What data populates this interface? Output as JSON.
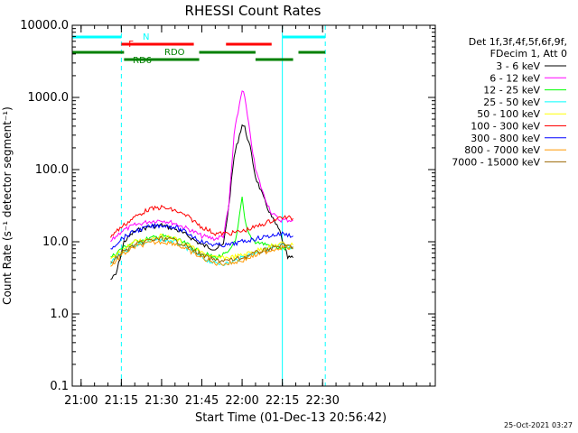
{
  "chart_data": {
    "type": "line",
    "title": "RHESSI Count Rates",
    "xlabel": "Start Time (01-Dec-13 20:56:42)",
    "ylabel": "Count Rate (s⁻¹ detector segment⁻¹)",
    "y_scale": "log",
    "ylim": [
      0.1,
      10000
    ],
    "xlim": [
      "20:56:42",
      "23:12:00"
    ],
    "x_ticks": [
      "21:00",
      "21:15",
      "21:30",
      "21:45",
      "22:00",
      "22:15",
      "22:30"
    ],
    "y_ticks": [
      "0.1",
      "1.0",
      "10.0",
      "100.0",
      "1000.0",
      "10000.0"
    ],
    "timestamp": "25-Oct-2021 03:27",
    "legend": {
      "position": "right",
      "header": [
        "Det 1f,3f,4f,5f,6f,9f,",
        "FDecim 1, Att 0"
      ]
    },
    "series": [
      {
        "name": "3 - 6 keV",
        "color": "#000000",
        "x": [
          "21:11",
          "21:13",
          "21:16",
          "21:20",
          "21:25",
          "21:30",
          "21:35",
          "21:40",
          "21:45",
          "21:50",
          "21:53",
          "21:55",
          "21:57",
          "21:59",
          "22:00",
          "22:01",
          "22:03",
          "22:05",
          "22:08",
          "22:11",
          "22:14",
          "22:16",
          "22:17",
          "22:19"
        ],
        "y": [
          3,
          3.5,
          10,
          14,
          16,
          17,
          15,
          12,
          9,
          8,
          9,
          30,
          150,
          300,
          420,
          380,
          200,
          80,
          40,
          22,
          14,
          8,
          6,
          6
        ]
      },
      {
        "name": "6 - 12 keV",
        "color": "#ff00ff",
        "x": [
          "21:11",
          "21:15",
          "21:20",
          "21:25",
          "21:30",
          "21:35",
          "21:40",
          "21:45",
          "21:50",
          "21:53",
          "21:55",
          "21:57",
          "21:59",
          "22:00",
          "22:01",
          "22:03",
          "22:05",
          "22:08",
          "22:11",
          "22:14",
          "22:19"
        ],
        "y": [
          10,
          14,
          17,
          19,
          20,
          18,
          15,
          12,
          11,
          12,
          30,
          300,
          800,
          1300,
          1000,
          300,
          100,
          45,
          25,
          20,
          20
        ]
      },
      {
        "name": "12 - 25 keV",
        "color": "#00ff00",
        "x": [
          "21:11",
          "21:15",
          "21:20",
          "21:25",
          "21:30",
          "21:35",
          "21:40",
          "21:45",
          "21:50",
          "21:55",
          "21:58",
          "22:00",
          "22:01",
          "22:02",
          "22:03",
          "22:05",
          "22:10",
          "22:15",
          "22:19"
        ],
        "y": [
          6,
          8,
          10,
          11,
          12,
          11,
          9,
          7,
          6,
          7,
          12,
          40,
          20,
          14,
          12,
          10,
          9,
          8,
          8
        ]
      },
      {
        "name": "25 - 50 keV",
        "color": "#00ffff",
        "x": [
          "21:11",
          "21:15",
          "21:20",
          "21:25",
          "21:30",
          "21:35",
          "21:40",
          "21:45",
          "21:50",
          "21:55",
          "22:00",
          "22:05",
          "22:10",
          "22:15",
          "22:19"
        ],
        "y": [
          5,
          7,
          9,
          10,
          11,
          10,
          8,
          6,
          5,
          5,
          6,
          7,
          8,
          9,
          8
        ]
      },
      {
        "name": "50 - 100 keV",
        "color": "#ffff00",
        "x": [
          "21:11",
          "21:15",
          "21:20",
          "21:25",
          "21:30",
          "21:35",
          "21:40",
          "21:45",
          "21:50",
          "21:55",
          "22:00",
          "22:05",
          "22:10",
          "22:15",
          "22:19"
        ],
        "y": [
          5.5,
          7.5,
          10,
          11,
          12,
          11,
          9,
          7,
          6,
          6,
          6.5,
          7.5,
          8.5,
          9.5,
          9
        ]
      },
      {
        "name": "100 - 300 keV",
        "color": "#ff0000",
        "x": [
          "21:11",
          "21:15",
          "21:20",
          "21:25",
          "21:30",
          "21:35",
          "21:40",
          "21:45",
          "21:50",
          "21:55",
          "22:00",
          "22:05",
          "22:10",
          "22:15",
          "22:19"
        ],
        "y": [
          12,
          16,
          22,
          28,
          30,
          27,
          22,
          16,
          13,
          13,
          14,
          16,
          19,
          22,
          21
        ]
      },
      {
        "name": "300 - 800 keV",
        "color": "#0000ff",
        "x": [
          "21:11",
          "21:15",
          "21:20",
          "21:25",
          "21:30",
          "21:35",
          "21:40",
          "21:45",
          "21:50",
          "21:55",
          "22:00",
          "22:05",
          "22:10",
          "22:15",
          "22:19"
        ],
        "y": [
          8,
          11,
          14,
          16,
          17,
          16,
          13,
          10,
          9,
          9,
          10,
          11,
          12,
          13,
          12
        ]
      },
      {
        "name": "800 - 7000 keV",
        "color": "#ff9900",
        "x": [
          "21:11",
          "21:15",
          "21:20",
          "21:25",
          "21:30",
          "21:35",
          "21:40",
          "21:45",
          "21:50",
          "21:55",
          "22:00",
          "22:05",
          "22:10",
          "22:15",
          "22:19"
        ],
        "y": [
          4.5,
          6.5,
          8.5,
          9.5,
          10,
          9.5,
          7.5,
          6,
          5,
          5,
          5.5,
          6.5,
          7.5,
          8.5,
          8
        ]
      },
      {
        "name": "7000 - 15000 keV",
        "color": "#996600",
        "x": [
          "21:11",
          "21:15",
          "21:20",
          "21:25",
          "21:30",
          "21:35",
          "21:40",
          "21:45",
          "21:50",
          "21:55",
          "22:00",
          "22:05",
          "22:10",
          "22:15",
          "22:19"
        ],
        "y": [
          5,
          7,
          9,
          10.5,
          11,
          10.5,
          8.5,
          6.5,
          5.5,
          5.5,
          6,
          7,
          8,
          9,
          8.5
        ]
      }
    ],
    "flag_bars": [
      {
        "label": "N",
        "color": "#00ffff",
        "segments": [
          [
            "20:56:42",
            "21:15"
          ],
          [
            "22:15",
            "22:31"
          ]
        ]
      },
      {
        "label": "F",
        "color": "#ff0000",
        "segments": [
          [
            "21:15",
            "21:42"
          ],
          [
            "21:54",
            "22:11"
          ]
        ]
      },
      {
        "label": "RDO",
        "color": "#008000",
        "segments": [
          [
            "20:56:42",
            "21:16"
          ],
          [
            "21:44",
            "22:05"
          ],
          [
            "22:21",
            "22:31"
          ]
        ]
      },
      {
        "label": "RD6",
        "color": "#008000",
        "segments": [
          [
            "21:16",
            "21:44"
          ],
          [
            "22:05",
            "22:19"
          ]
        ]
      }
    ],
    "vertical_lines": [
      {
        "x": "20:56:42",
        "color": "#00ffff",
        "style": "solid"
      },
      {
        "x": "21:15",
        "color": "#00ffff",
        "style": "dashed"
      },
      {
        "x": "22:15",
        "color": "#00ffff",
        "style": "solid"
      },
      {
        "x": "22:31",
        "color": "#00ffff",
        "style": "dashed"
      }
    ]
  }
}
